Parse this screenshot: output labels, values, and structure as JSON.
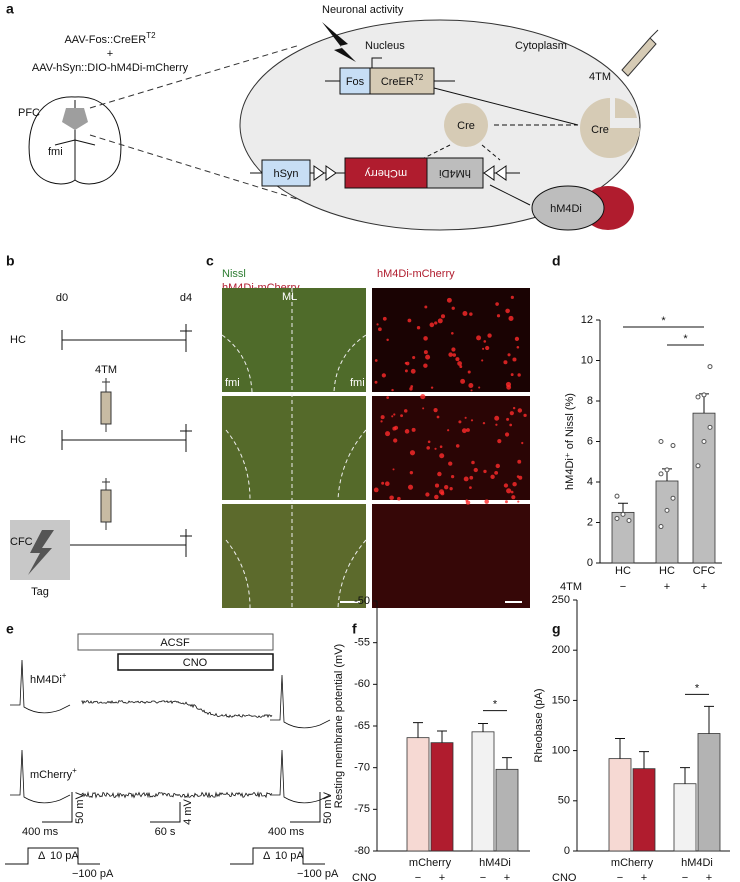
{
  "panel_a": {
    "label": "a",
    "activity": "Neuronal activity",
    "nucleus": "Nucleus",
    "cytoplasm": "Cytoplasm",
    "construct_1": "AAV-Fos::CreER",
    "construct_1_sup": "T2",
    "plus": "+",
    "construct_2": "AAV-hSyn::DIO-hM4Di-mCherry",
    "region": "PFC",
    "fmi": "fmi",
    "fos": "Fos",
    "creer": "CreER",
    "creer_sup": "T2",
    "cre_nucleus": "Cre",
    "hsyn": "hSyn",
    "mcherry": "mCherry",
    "hm4di_box": "hM4Di",
    "tm": "4TM",
    "cre_cyto": "Cre",
    "hm4di_protein": "hM4Di"
  },
  "panel_b": {
    "label": "b",
    "day_start": "d0",
    "day_end": "d4",
    "rows": [
      "HC",
      "HC",
      "CFC"
    ],
    "tm": "4TM",
    "tag": "Tag"
  },
  "panel_c": {
    "label": "c",
    "stain_1": "Nissl",
    "stain_2": "hM4Di-mCherry",
    "stain_right": "hM4Di-mCherry",
    "midline": "ML",
    "fmi_left": "fmi",
    "fmi_right": "fmi"
  },
  "panel_e": {
    "label": "e",
    "acsf": "ACSF",
    "cno": "CNO",
    "cell_1": "hM4Di",
    "cell_1_sup": "+",
    "cell_2": "mCherry",
    "cell_2_sup": "+",
    "scale_time_1": "400 ms",
    "scale_v_1": "50 mV",
    "scale_v_2": "4 mV",
    "scale_time_2": "60 s",
    "scale_v_3": "50 mV",
    "scale_time_3": "400 ms",
    "step_delta": "Δ",
    "step_size": "10 pA",
    "step_hold": "−100 pA"
  },
  "panel_labels": {
    "d": "d",
    "f": "f",
    "g": "g"
  },
  "chart_data": [
    {
      "type": "bar",
      "y_label": "hM4Di⁺ of Nissl (%)",
      "categories": [
        "HC",
        "HC",
        "CFC"
      ],
      "values": [
        2.5,
        4.05,
        7.4
      ],
      "errors": [
        0.45,
        0.6,
        0.95
      ],
      "points": [
        [
          2.2,
          2.4,
          2.1,
          3.3
        ],
        [
          1.8,
          2.6,
          3.2,
          4.4,
          4.6,
          5.8,
          6.0
        ],
        [
          4.8,
          6.0,
          6.7,
          8.2,
          8.3,
          9.7
        ]
      ],
      "color": "#bdbdbd",
      "ylim": [
        0,
        12
      ],
      "yticks": [
        0,
        2,
        4,
        6,
        8,
        10,
        12
      ],
      "row_label": "4TM",
      "row_values": [
        "−",
        "+",
        "+"
      ],
      "annotations": [
        "*",
        "*"
      ]
    },
    {
      "type": "grouped_bar",
      "y_label": "Resting membrane potential (mV)",
      "categories": [
        "mCherry",
        "hM4Di"
      ],
      "row_label": "CNO",
      "series": [
        {
          "name": "−",
          "colors": [
            "#f6d9d3",
            "#f2f2f2"
          ],
          "values": [
            -66.4,
            -65.7
          ],
          "errors": [
            1.8,
            1.0
          ]
        },
        {
          "name": "+",
          "colors": [
            "#b01c2e",
            "#b3b3b3"
          ],
          "values": [
            -67.0,
            -70.2
          ],
          "errors": [
            1.4,
            1.4
          ]
        }
      ],
      "ylim": [
        -80,
        -50
      ],
      "yticks": [
        -80,
        -75,
        -70,
        -65,
        -60,
        -55,
        -50
      ],
      "annotations": [
        "*"
      ]
    },
    {
      "type": "grouped_bar",
      "y_label": "Rheobase (pA)",
      "categories": [
        "mCherry",
        "hM4Di"
      ],
      "row_label": "CNO",
      "series": [
        {
          "name": "−",
          "colors": [
            "#f6d9d3",
            "#f2f2f2"
          ],
          "values": [
            92,
            67
          ],
          "errors": [
            20,
            16
          ]
        },
        {
          "name": "+",
          "colors": [
            "#b01c2e",
            "#b3b3b3"
          ],
          "values": [
            82,
            117
          ],
          "errors": [
            17,
            27
          ]
        }
      ],
      "ylim": [
        0,
        250
      ],
      "yticks": [
        0,
        50,
        100,
        150,
        200,
        250
      ],
      "annotations": [
        "*"
      ]
    }
  ]
}
